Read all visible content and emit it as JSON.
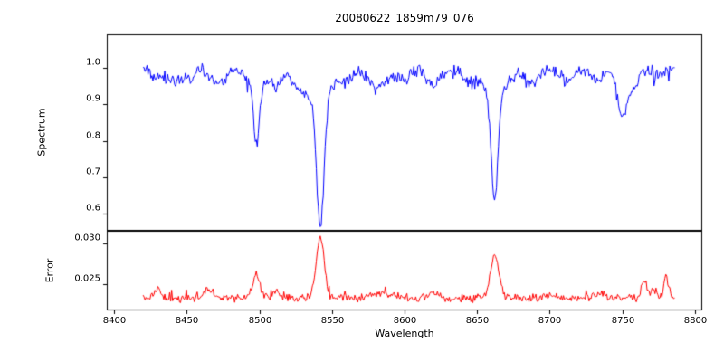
{
  "figure": {
    "title": "20080622_1859m79_076",
    "xlabel": "Wavelength",
    "background": "#ffffff",
    "spine_color": "#000000",
    "text_color": "#000000"
  },
  "chart_data": [
    {
      "type": "line",
      "name": "spectrum",
      "title": "20080622_1859m79_076",
      "ylabel": "Spectrum",
      "color": "#0000ff",
      "xlim": [
        8395,
        8805
      ],
      "ylim": [
        0.553,
        1.092
      ],
      "yticks": [
        {
          "value": 0.6,
          "label": "0.6"
        },
        {
          "value": 0.7,
          "label": "0.7"
        },
        {
          "value": 0.8,
          "label": "0.8"
        },
        {
          "value": 0.9,
          "label": "0.9"
        },
        {
          "value": 1.0,
          "label": "1.0"
        }
      ],
      "x_start": 8420,
      "x_end": 8786,
      "continuum": 0.998,
      "noise_amplitude": 0.02,
      "spike_probability": 0.04,
      "spike_amplitude": 0.025,
      "absorption_lines": [
        [
          8498,
          0.16,
          1.9
        ],
        [
          8498,
          0.05,
          6
        ],
        [
          8542,
          0.36,
          2.6
        ],
        [
          8542,
          0.07,
          9
        ],
        [
          8662,
          0.29,
          2.3
        ],
        [
          8662,
          0.07,
          8
        ],
        [
          8428,
          0.02,
          4
        ],
        [
          8440,
          0.035,
          5
        ],
        [
          8452,
          0.03,
          3.5
        ],
        [
          8472,
          0.04,
          5
        ],
        [
          8512,
          0.04,
          4
        ],
        [
          8528,
          0.045,
          5
        ],
        [
          8560,
          0.025,
          4
        ],
        [
          8582,
          0.05,
          7
        ],
        [
          8600,
          0.03,
          4
        ],
        [
          8620,
          0.045,
          5
        ],
        [
          8645,
          0.03,
          4
        ],
        [
          8688,
          0.035,
          5
        ],
        [
          8712,
          0.035,
          4
        ],
        [
          8733,
          0.03,
          4
        ],
        [
          8750,
          0.13,
          3.5
        ],
        [
          8758,
          0.05,
          3
        ],
        [
          8775,
          0.02,
          3
        ]
      ]
    },
    {
      "type": "line",
      "name": "error",
      "ylabel": "Error",
      "color": "#ff0000",
      "xlim": [
        8395,
        8805
      ],
      "ylim": [
        0.0218,
        0.0315
      ],
      "yticks": [
        {
          "value": 0.025,
          "label": "0.025"
        },
        {
          "value": 0.03,
          "label": "0.030"
        }
      ],
      "xticks": [
        {
          "value": 8400,
          "label": "8400"
        },
        {
          "value": 8450,
          "label": "8450"
        },
        {
          "value": 8500,
          "label": "8500"
        },
        {
          "value": 8550,
          "label": "8550"
        },
        {
          "value": 8600,
          "label": "8600"
        },
        {
          "value": 8650,
          "label": "8650"
        },
        {
          "value": 8700,
          "label": "8700"
        },
        {
          "value": 8750,
          "label": "8750"
        },
        {
          "value": 8800,
          "label": "8800"
        }
      ],
      "x_start": 8420,
      "x_end": 8786,
      "baseline": 0.0233,
      "noise_amplitude": 0.0006,
      "spike_probability": 0.04,
      "spike_amplitude": 0.0012,
      "peaks": [
        [
          8430,
          0.0012,
          2
        ],
        [
          8465,
          0.0012,
          2.5
        ],
        [
          8498,
          0.003,
          2.5
        ],
        [
          8512,
          0.0008,
          2
        ],
        [
          8542,
          0.0074,
          2.8
        ],
        [
          8585,
          0.0006,
          6
        ],
        [
          8620,
          0.0005,
          4
        ],
        [
          8662,
          0.0053,
          2.8
        ],
        [
          8700,
          0.0004,
          4
        ],
        [
          8735,
          0.0005,
          3
        ],
        [
          8765,
          0.0022,
          1.8
        ],
        [
          8772,
          0.001,
          2
        ],
        [
          8780,
          0.0028,
          1.5
        ]
      ]
    }
  ]
}
